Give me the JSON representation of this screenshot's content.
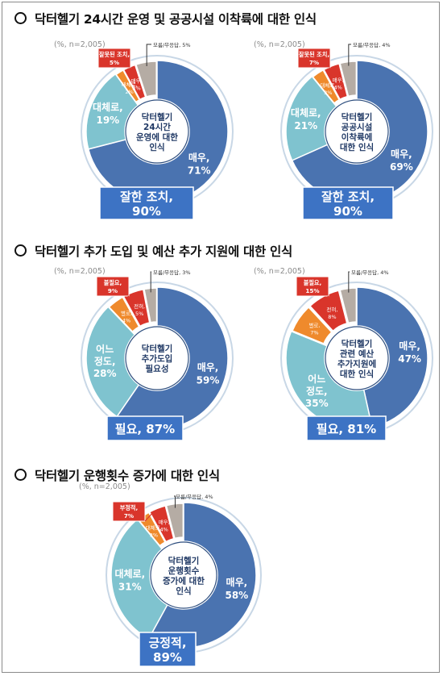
{
  "sections": [
    {
      "title": "닥터헬기 24시간 운영 및 공공시설 이착륙에 대한 인식"
    },
    {
      "title": "닥터헬기 추가 도입 및 예산 추가 지원에 대한 인식"
    },
    {
      "title": "닥터헬기 운행횟수 증가에 대한 인식"
    }
  ],
  "colors": {
    "dark_blue": "#4a73b0",
    "light_teal": "#7fc3cf",
    "orange": "#ef8a2c",
    "red": "#d9352b",
    "gray": "#b5aca4",
    "callout_blue": "#3d73c4"
  },
  "chart_data": [
    {
      "type": "pie",
      "note": "(%, n=2,005)",
      "center_label": [
        "닥터헬기",
        "24시간",
        "운영에 대한",
        "인식"
      ],
      "slices": [
        {
          "label": "매우,",
          "value": 71,
          "value_label": "71%",
          "color": "dark_blue"
        },
        {
          "label": "대체로,",
          "value": 19,
          "value_label": "19%",
          "color": "light_teal"
        },
        {
          "label": "대체로,",
          "value": 2,
          "value_label": "2%",
          "color": "orange"
        },
        {
          "label": "매우,",
          "value": 3,
          "value_label": "3%",
          "color": "red"
        },
        {
          "label": "모름/무응답,",
          "value": 5,
          "value_label": "5%",
          "color": "gray"
        }
      ],
      "negative_callout": {
        "label": "잘못된 조치,",
        "value": "5%"
      },
      "dont_know_label": "모름/무응답, 5%",
      "summary_callout": {
        "label": "잘한 조치,",
        "value": "90%"
      }
    },
    {
      "type": "pie",
      "note": "(%, n=2,005)",
      "center_label": [
        "닥터헬기",
        "공공시설",
        "이착륙에",
        "대한 인식"
      ],
      "slices": [
        {
          "label": "매우,",
          "value": 69,
          "value_label": "69%",
          "color": "dark_blue"
        },
        {
          "label": "대체로,",
          "value": 21,
          "value_label": "21%",
          "color": "light_teal"
        },
        {
          "label": "대체로,",
          "value": 3,
          "value_label": "3%",
          "color": "orange"
        },
        {
          "label": "매우,",
          "value": 4,
          "value_label": "4%",
          "color": "red"
        },
        {
          "label": "모름/무응답,",
          "value": 4,
          "value_label": "4%",
          "color": "gray"
        }
      ],
      "negative_callout": {
        "label": "잘못된 조치,",
        "value": "7%"
      },
      "dont_know_label": "모름/무응답, 4%",
      "summary_callout": {
        "label": "잘한 조치,",
        "value": "90%"
      }
    },
    {
      "type": "pie",
      "note": "(%, n=2,005)",
      "center_label": [
        "닥터헬기",
        "추가도입",
        "필요성"
      ],
      "slices": [
        {
          "label": "매우,",
          "value": 59,
          "value_label": "59%",
          "color": "dark_blue"
        },
        {
          "label": "어느",
          "label2": "정도,",
          "value": 28,
          "value_label": "28%",
          "color": "light_teal"
        },
        {
          "label": "별로,",
          "value": 4,
          "value_label": "4%",
          "color": "orange"
        },
        {
          "label": "전혀,",
          "value": 5,
          "value_label": "5%",
          "color": "red"
        },
        {
          "label": "모름/무응답,",
          "value": 3,
          "value_label": "3%",
          "color": "gray"
        }
      ],
      "negative_callout": {
        "label": "불필요,",
        "value": "9%"
      },
      "dont_know_label": "모름/무응답, 3%",
      "summary_callout": {
        "label": "필요, 87%",
        "value": ""
      }
    },
    {
      "type": "pie",
      "note": "(%, n=2,005)",
      "center_label": [
        "닥터헬기",
        "관련 예산",
        "추가지원에",
        "대한 인식"
      ],
      "slices": [
        {
          "label": "매우,",
          "value": 47,
          "value_label": "47%",
          "color": "dark_blue"
        },
        {
          "label": "어느",
          "label2": "정도,",
          "value": 35,
          "value_label": "35%",
          "color": "light_teal"
        },
        {
          "label": "별로,",
          "value": 7,
          "value_label": "7%",
          "color": "orange"
        },
        {
          "label": "전혀,",
          "value": 8,
          "value_label": "8%",
          "color": "red"
        },
        {
          "label": "모름/무응답,",
          "value": 4,
          "value_label": "4%",
          "color": "gray"
        }
      ],
      "negative_callout": {
        "label": "불필요,",
        "value": "15%"
      },
      "dont_know_label": "모름/무응답, 4%",
      "summary_callout": {
        "label": "필요, 81%",
        "value": ""
      }
    },
    {
      "type": "pie",
      "note": "(%, n=2,005)",
      "center_label": [
        "닥터헬기",
        "운행횟수",
        "증가에 대한",
        "인식"
      ],
      "slices": [
        {
          "label": "매우,",
          "value": 58,
          "value_label": "58%",
          "color": "dark_blue"
        },
        {
          "label": "대체로,",
          "value": 31,
          "value_label": "31%",
          "color": "light_teal"
        },
        {
          "label": "대체로,",
          "value": 3,
          "value_label": "3%",
          "color": "orange"
        },
        {
          "label": "매우,",
          "value": 4,
          "value_label": "4%",
          "color": "red"
        },
        {
          "label": "모름/무응답,",
          "value": 4,
          "value_label": "4%",
          "color": "gray"
        }
      ],
      "negative_callout": {
        "label": "부정적,",
        "value": "7%"
      },
      "dont_know_label": "모름/무응답, 4%",
      "summary_callout": {
        "label": "긍정적,",
        "value": "89%"
      }
    }
  ]
}
